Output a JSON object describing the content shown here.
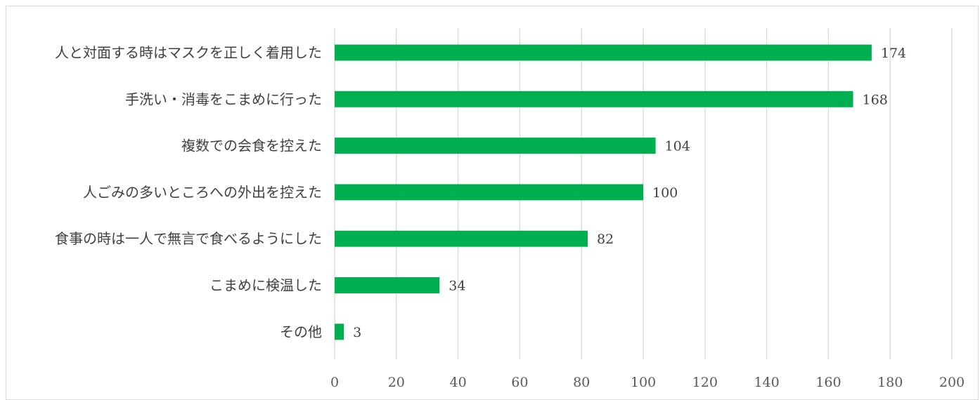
{
  "chart_data": {
    "type": "bar",
    "orientation": "horizontal",
    "categories": [
      "人と対面する時はマスクを正しく着用した",
      "手洗い・消毒をこまめに行った",
      "複数での会食を控えた",
      "人ごみの多いところへの外出を控えた",
      "食事の時は一人で無言で食べるようにした",
      "こまめに検温した",
      "その他"
    ],
    "values": [
      174,
      168,
      104,
      100,
      82,
      34,
      3
    ],
    "data_labels": [
      "174",
      "168",
      "104",
      "100",
      "82",
      "34",
      "3"
    ],
    "xlim": [
      0,
      200
    ],
    "x_ticks": [
      0,
      20,
      40,
      60,
      80,
      100,
      120,
      140,
      160,
      180,
      200
    ],
    "x_tick_labels": [
      "0",
      "20",
      "40",
      "60",
      "80",
      "100",
      "120",
      "140",
      "160",
      "180",
      "200"
    ],
    "grid": true,
    "legend": "none",
    "bar_color": "#00b050",
    "title": "",
    "xlabel": "",
    "ylabel": ""
  }
}
